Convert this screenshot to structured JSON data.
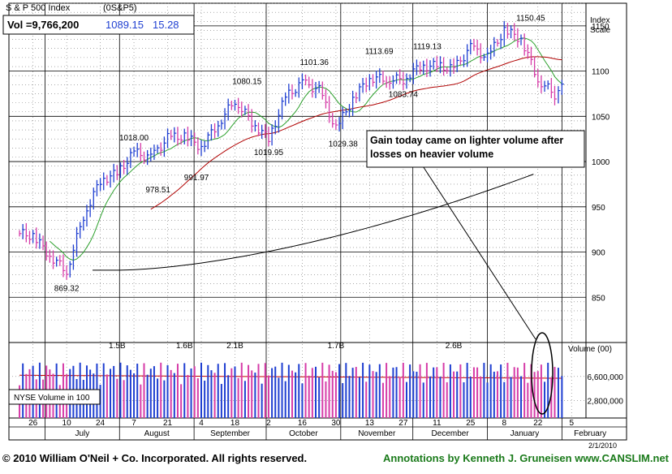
{
  "header": {
    "title": "S & P 500 Index",
    "symbol": "(0S&P5)",
    "vol_label": "Vol =9,766,200",
    "price": "1089.15",
    "change": "15.28"
  },
  "axis": {
    "price_title_line1": "Index",
    "price_title_line2": "Scale",
    "volume_title": "Volume (00)",
    "price_ticks": [
      "1150",
      "1100",
      "1050",
      "1000",
      "950",
      "900",
      "850"
    ],
    "volume_ticks": [
      "6,600,000",
      "2,800,000"
    ],
    "day_ticks": [
      "26",
      "10",
      "24",
      "7",
      "21",
      "4",
      "18",
      "2",
      "16",
      "30",
      "13",
      "27",
      "11",
      "25",
      "8",
      "22",
      "5"
    ],
    "month_labels": [
      "July",
      "August",
      "September",
      "October",
      "November",
      "December",
      "January",
      "February"
    ],
    "date_stamp": "2/1/2010"
  },
  "legend": {
    "volume_box": "NYSE Volume in 100"
  },
  "annotation": {
    "line1": "Gain today came on lighter volume after",
    "line2": "losses on heavier volume"
  },
  "footer": {
    "copyright": "© 2010 William O'Neil + Co. Incorporated. All rights reserved.",
    "credit": "Annotations by Kenneth J. Gruneisen www.CANSLIM.net"
  },
  "colors": {
    "up": "#1f3fd1",
    "down": "#d63ca8",
    "ma50": "#2ca02c",
    "ma200": "#b00000",
    "ma_long": "#000000",
    "vol_avg": "#c00000"
  },
  "chart_data": {
    "type": "bar",
    "price_range": [
      800,
      1175
    ],
    "volume_range": [
      0,
      12000000
    ],
    "price_labels": [
      {
        "text": "869.32",
        "value": 869.32,
        "date": "2009-07-10"
      },
      {
        "text": "1018.00",
        "value": 1018.0,
        "date": "2009-08-07"
      },
      {
        "text": "978.51",
        "value": 978.51,
        "date": "2009-08-17"
      },
      {
        "text": "991.97",
        "value": 991.97,
        "date": "2009-09-02"
      },
      {
        "text": "1080.15",
        "value": 1080.15,
        "date": "2009-09-23"
      },
      {
        "text": "1019.95",
        "value": 1019.95,
        "date": "2009-10-02"
      },
      {
        "text": "1101.36",
        "value": 1101.36,
        "date": "2009-10-21"
      },
      {
        "text": "1029.38",
        "value": 1029.38,
        "date": "2009-11-02"
      },
      {
        "text": "1113.69",
        "value": 1113.69,
        "date": "2009-11-17"
      },
      {
        "text": "1083.74",
        "value": 1083.74,
        "date": "2009-11-27"
      },
      {
        "text": "1119.13",
        "value": 1119.13,
        "date": "2009-12-07"
      },
      {
        "text": "1150.45",
        "value": 1150.45,
        "date": "2010-01-19"
      }
    ],
    "volume_labels": [
      {
        "text": "1.5B",
        "date": "2009-07-31"
      },
      {
        "text": "1.6B",
        "date": "2009-08-28"
      },
      {
        "text": "2.1B",
        "date": "2009-09-18"
      },
      {
        "text": "1.7B",
        "date": "2009-10-30"
      },
      {
        "text": "2.6B",
        "date": "2009-12-18"
      }
    ],
    "weekly_closes": [
      {
        "date": "2009-06-19",
        "close": 921
      },
      {
        "date": "2009-06-26",
        "close": 918
      },
      {
        "date": "2009-07-03",
        "close": 896
      },
      {
        "date": "2009-07-10",
        "close": 879
      },
      {
        "date": "2009-07-17",
        "close": 940
      },
      {
        "date": "2009-07-24",
        "close": 979
      },
      {
        "date": "2009-07-31",
        "close": 987
      },
      {
        "date": "2009-08-07",
        "close": 1010
      },
      {
        "date": "2009-08-14",
        "close": 1004
      },
      {
        "date": "2009-08-21",
        "close": 1026
      },
      {
        "date": "2009-08-28",
        "close": 1028
      },
      {
        "date": "2009-09-04",
        "close": 1016
      },
      {
        "date": "2009-09-11",
        "close": 1042
      },
      {
        "date": "2009-09-18",
        "close": 1068
      },
      {
        "date": "2009-09-25",
        "close": 1044
      },
      {
        "date": "2009-10-02",
        "close": 1025
      },
      {
        "date": "2009-10-09",
        "close": 1071
      },
      {
        "date": "2009-10-16",
        "close": 1087
      },
      {
        "date": "2009-10-23",
        "close": 1079
      },
      {
        "date": "2009-10-30",
        "close": 1036
      },
      {
        "date": "2009-11-06",
        "close": 1069
      },
      {
        "date": "2009-11-13",
        "close": 1093
      },
      {
        "date": "2009-11-20",
        "close": 1091
      },
      {
        "date": "2009-11-27",
        "close": 1091
      },
      {
        "date": "2009-12-04",
        "close": 1105
      },
      {
        "date": "2009-12-11",
        "close": 1106
      },
      {
        "date": "2009-12-18",
        "close": 1102
      },
      {
        "date": "2009-12-25",
        "close": 1126
      },
      {
        "date": "2010-01-01",
        "close": 1115
      },
      {
        "date": "2010-01-08",
        "close": 1145
      },
      {
        "date": "2010-01-15",
        "close": 1136
      },
      {
        "date": "2010-01-22",
        "close": 1091
      },
      {
        "date": "2010-01-29",
        "close": 1074
      },
      {
        "date": "2010-02-01",
        "close": 1089.15
      }
    ]
  }
}
